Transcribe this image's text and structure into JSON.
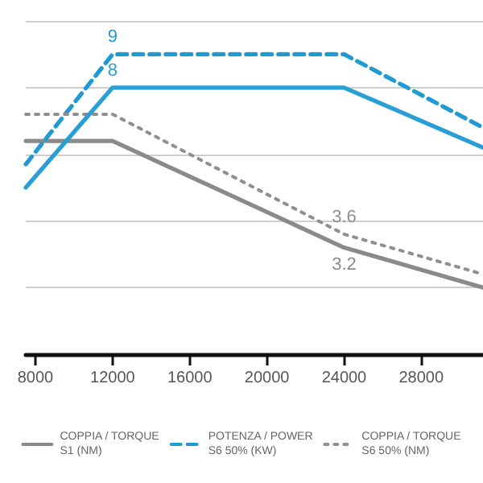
{
  "chart_data": {
    "type": "line",
    "x": [
      7500,
      12000,
      24000,
      31200
    ],
    "series": [
      {
        "name": "COPPIA / TORQUE\nS1 (NM)",
        "color": "#8a8a8a",
        "line_style": "solid",
        "values": [
          6.4,
          6.4,
          3.2,
          2.0
        ],
        "value_labels": [
          null,
          null,
          "3.2",
          null
        ]
      },
      {
        "name": "POTENZA / POWER\nS6 50% (KW)",
        "color": "#1f9bd1",
        "line_style": "dashed",
        "values": [
          5.7,
          9,
          9,
          6.8
        ],
        "value_labels": [
          null,
          "9",
          null,
          null
        ]
      },
      {
        "name": "COPPIA / TORQUE\nS6 50% (NM)",
        "color": "#8f8f8f",
        "line_style": "dotted",
        "values": [
          7.2,
          7.2,
          3.6,
          2.4
        ],
        "value_labels": [
          null,
          null,
          "3.6",
          null
        ]
      },
      {
        "color": "#2a9fd6",
        "line_style": "solid",
        "values": [
          5.0,
          8,
          8,
          6.2
        ],
        "value_labels": [
          null,
          "8",
          null,
          null
        ]
      }
    ],
    "xlim": [
      7500,
      31200
    ],
    "xticks": [
      8000,
      12000,
      16000,
      20000,
      24000,
      28000
    ],
    "ylim": [
      0,
      10
    ],
    "yticks": [
      {
        "value": 0,
        "label": null
      },
      {
        "value": 2,
        "label": null
      },
      {
        "value": 4,
        "label": null
      },
      {
        "value": 6,
        "label": null
      },
      {
        "value": 8,
        "label": null
      },
      {
        "value": 10,
        "label": null
      }
    ],
    "tick_labels": "x",
    "grid": "y",
    "legend": "bottom",
    "marker": "none"
  }
}
